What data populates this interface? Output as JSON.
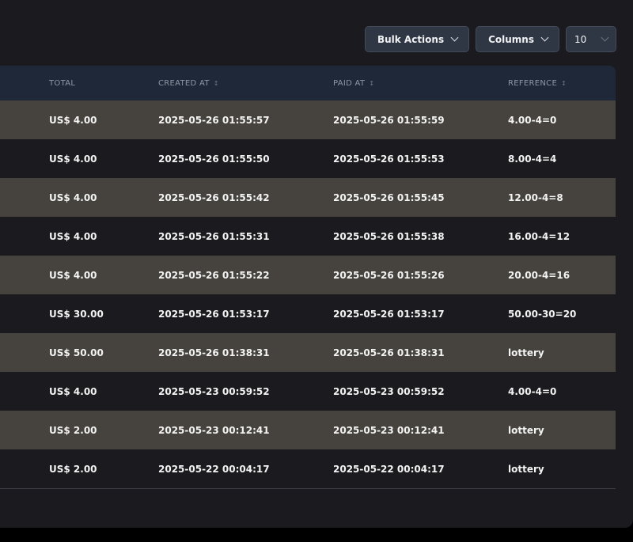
{
  "toolbar": {
    "bulk_actions_label": "Bulk Actions",
    "columns_label": "Columns",
    "per_page_value": "10"
  },
  "table": {
    "headers": [
      "Total",
      "Created at",
      "Paid at",
      "Reference"
    ],
    "sort_icon": "↕",
    "rows": [
      [
        "US$ 4.00",
        "2025-05-26 01:55:57",
        "2025-05-26 01:55:59",
        "4.00-4=0"
      ],
      [
        "US$ 4.00",
        "2025-05-26 01:55:50",
        "2025-05-26 01:55:53",
        "8.00-4=4"
      ],
      [
        "US$ 4.00",
        "2025-05-26 01:55:42",
        "2025-05-26 01:55:45",
        "12.00-4=8"
      ],
      [
        "US$ 4.00",
        "2025-05-26 01:55:31",
        "2025-05-26 01:55:38",
        "16.00-4=12"
      ],
      [
        "US$ 4.00",
        "2025-05-26 01:55:22",
        "2025-05-26 01:55:26",
        "20.00-4=16"
      ],
      [
        "US$ 30.00",
        "2025-05-26 01:53:17",
        "2025-05-26 01:53:17",
        "50.00-30=20"
      ],
      [
        "US$ 50.00",
        "2025-05-26 01:38:31",
        "2025-05-26 01:38:31",
        "lottery"
      ],
      [
        "US$ 4.00",
        "2025-05-23 00:59:52",
        "2025-05-23 00:59:52",
        "4.00-4=0"
      ],
      [
        "US$ 2.00",
        "2025-05-23 00:12:41",
        "2025-05-23 00:12:41",
        "lottery"
      ],
      [
        "US$ 2.00",
        "2025-05-22 00:04:17",
        "2025-05-22 00:04:17",
        "lottery"
      ]
    ]
  }
}
